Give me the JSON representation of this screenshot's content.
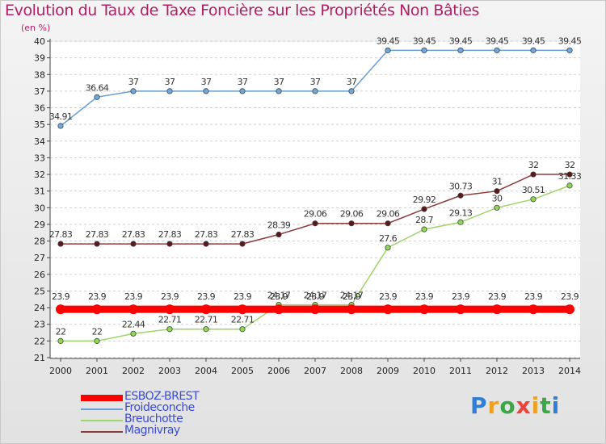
{
  "title": "Evolution du Taux de Taxe Foncière sur les Propriétés Non Bâties",
  "unit_label": "(en %)",
  "brand": "Proxiti",
  "chart_data": {
    "type": "line",
    "title": "Evolution du Taux de Taxe Foncière sur les Propriétés Non Bâties",
    "ylabel": "(en %)",
    "xlabel": "",
    "x": [
      2000,
      2001,
      2002,
      2003,
      2004,
      2005,
      2006,
      2007,
      2008,
      2009,
      2010,
      2011,
      2012,
      2013,
      2014
    ],
    "ylim": [
      21,
      40
    ],
    "yticks": [
      21,
      22,
      23,
      24,
      25,
      26,
      27,
      28,
      29,
      30,
      31,
      32,
      33,
      34,
      35,
      36,
      37,
      38,
      39,
      40
    ],
    "grid": "horizontal-dashed",
    "legend_position": "bottom-left",
    "series": [
      {
        "name": "ESBOZ-BREST",
        "color": "#ff0000",
        "marker_color": "#ff0000",
        "highlight": true,
        "values": [
          23.9,
          23.9,
          23.9,
          23.9,
          23.9,
          23.9,
          23.9,
          23.9,
          23.9,
          23.9,
          23.9,
          23.9,
          23.9,
          23.9,
          23.9
        ],
        "labels": [
          "23.9",
          "23.9",
          "23.9",
          "23.9",
          "23.9",
          "23.9",
          "23.9",
          "23.9",
          "23.9",
          "23.9",
          "23.9",
          "23.9",
          "23.9",
          "23.9",
          "23.9"
        ]
      },
      {
        "name": "Froideconche",
        "color": "#6a9fd0",
        "marker_color": "#6fa8dc",
        "values": [
          34.91,
          36.64,
          37,
          37,
          37,
          37,
          37,
          37,
          37,
          39.45,
          39.45,
          39.45,
          39.45,
          39.45,
          39.45
        ],
        "labels": [
          "34.91",
          "36.64",
          "37",
          "37",
          "37",
          "37",
          "37",
          "37",
          "37",
          "39.45",
          "39.45",
          "39.45",
          "39.45",
          "39.45",
          "39.45"
        ]
      },
      {
        "name": "Breuchotte",
        "color": "#9ed56b",
        "marker_color": "#8ed94f",
        "values": [
          22,
          22,
          22.44,
          22.71,
          22.71,
          22.71,
          24.17,
          24.17,
          24.17,
          27.6,
          28.7,
          29.13,
          30,
          30.51,
          31.33
        ],
        "labels": [
          "22",
          "22",
          "22.44",
          "22.71",
          "22.71",
          "22.71",
          "24.17",
          "24.17",
          "24.17",
          "27.6",
          "28.7",
          "29.13",
          "30",
          "30.51",
          "31.33"
        ]
      },
      {
        "name": "Magnivray",
        "color": "#8b3a3a",
        "marker_color": "#5a1818",
        "values": [
          27.83,
          27.83,
          27.83,
          27.83,
          27.83,
          27.83,
          28.39,
          29.06,
          29.06,
          29.06,
          29.92,
          30.73,
          31,
          32,
          32
        ],
        "labels": [
          "27.83",
          "27.83",
          "27.83",
          "27.83",
          "27.83",
          "27.83",
          "28.39",
          "29.06",
          "29.06",
          "29.06",
          "29.92",
          "30.73",
          "31",
          "32",
          "32"
        ]
      }
    ]
  }
}
